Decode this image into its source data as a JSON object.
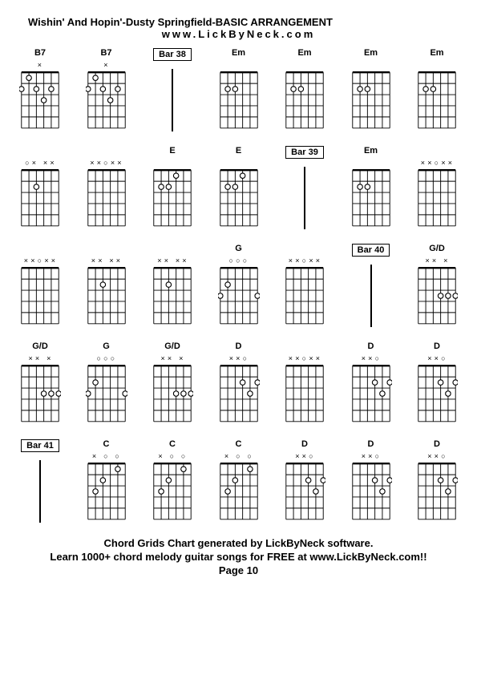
{
  "header": {
    "title": "Wishin' And Hopin'-Dusty Springfield-BASIC ARRANGEMENT",
    "url": "www.LickByNeck.com"
  },
  "footer": {
    "line1": "Chord Grids Chart generated by LickByNeck software.",
    "line2": "Learn 1000+ chord melody guitar songs for FREE at www.LickByNeck.com!!",
    "page": "Page 10"
  },
  "chordGrid": {
    "stroke": "#000000",
    "fretboardWidth": 50,
    "fretboardHeight": 75,
    "strings": 6,
    "frets": 5
  },
  "rows": [
    [
      {
        "type": "chord",
        "label": "B7",
        "markers": "×     ",
        "dots": [
          [
            1,
            0
          ],
          [
            0,
            1
          ],
          [
            2,
            1
          ],
          [
            4,
            1
          ],
          [
            3,
            2
          ]
        ],
        "opens": [
          1,
          5
        ]
      },
      {
        "type": "chord",
        "label": "B7",
        "markers": "×     ",
        "dots": [
          [
            1,
            0
          ],
          [
            0,
            1
          ],
          [
            2,
            1
          ],
          [
            4,
            1
          ],
          [
            3,
            2
          ]
        ],
        "opens": [
          1,
          5
        ]
      },
      {
        "type": "bar",
        "label": "Bar 38"
      },
      {
        "type": "chord",
        "label": "Em",
        "markers": "      ",
        "dots": [
          [
            1,
            1
          ],
          [
            2,
            1
          ]
        ],
        "opens": [
          0,
          3,
          4,
          5
        ]
      },
      {
        "type": "chord",
        "label": "Em",
        "markers": "      ",
        "dots": [
          [
            1,
            1
          ],
          [
            2,
            1
          ]
        ],
        "opens": [
          0,
          3,
          4,
          5
        ]
      },
      {
        "type": "chord",
        "label": "Em",
        "markers": "      ",
        "dots": [
          [
            1,
            1
          ],
          [
            2,
            1
          ]
        ],
        "opens": [
          0,
          3,
          4,
          5
        ]
      },
      {
        "type": "chord",
        "label": "Em",
        "markers": "      ",
        "dots": [
          [
            1,
            1
          ],
          [
            2,
            1
          ]
        ],
        "opens": [
          0,
          3,
          4,
          5
        ]
      }
    ],
    [
      {
        "type": "chord",
        "label": "",
        "markers": "○× ×× ",
        "dots": [
          [
            2,
            1
          ]
        ],
        "opens": [
          0,
          5
        ]
      },
      {
        "type": "chord",
        "label": "",
        "markers": "××○×× ",
        "dots": [],
        "opens": [
          2,
          5
        ]
      },
      {
        "type": "chord",
        "label": "E",
        "markers": "      ",
        "dots": [
          [
            3,
            0
          ],
          [
            1,
            1
          ],
          [
            2,
            1
          ]
        ],
        "opens": [
          0,
          4,
          5
        ]
      },
      {
        "type": "chord",
        "label": "E",
        "markers": "      ",
        "dots": [
          [
            3,
            0
          ],
          [
            1,
            1
          ],
          [
            2,
            1
          ]
        ],
        "opens": [
          0,
          4,
          5
        ]
      },
      {
        "type": "bar",
        "label": "Bar 39"
      },
      {
        "type": "chord",
        "label": "Em",
        "markers": "      ",
        "dots": [
          [
            1,
            1
          ],
          [
            2,
            1
          ]
        ],
        "opens": [
          0,
          3,
          4,
          5
        ]
      },
      {
        "type": "chord",
        "label": "",
        "markers": "××○×× ",
        "dots": [],
        "opens": [
          2,
          5
        ]
      }
    ],
    [
      {
        "type": "chord",
        "label": "",
        "markers": "××○×× ",
        "dots": [],
        "opens": [
          2,
          5
        ]
      },
      {
        "type": "chord",
        "label": "",
        "markers": "×× ×× ",
        "dots": [
          [
            2,
            1
          ]
        ],
        "opens": [
          5
        ]
      },
      {
        "type": "chord",
        "label": "",
        "markers": "×× ×× ",
        "dots": [
          [
            2,
            1
          ]
        ],
        "opens": [
          5
        ]
      },
      {
        "type": "chord",
        "label": "G",
        "markers": " ○○○  ",
        "dots": [
          [
            1,
            1
          ],
          [
            0,
            2
          ],
          [
            5,
            2
          ]
        ],
        "opens": [
          1,
          2,
          3,
          4
        ]
      },
      {
        "type": "chord",
        "label": "",
        "markers": "××○×× ",
        "dots": [],
        "opens": [
          2,
          5
        ]
      },
      {
        "type": "bar",
        "label": "Bar 40"
      },
      {
        "type": "chord",
        "label": "G/D",
        "markers": "×× × ",
        "dots": [
          [
            3,
            2
          ],
          [
            4,
            2
          ],
          [
            5,
            2
          ]
        ],
        "opens": [
          2
        ]
      }
    ],
    [
      {
        "type": "chord",
        "label": "G/D",
        "markers": "×× × ",
        "dots": [
          [
            3,
            2
          ],
          [
            4,
            2
          ],
          [
            5,
            2
          ]
        ],
        "opens": [
          2
        ]
      },
      {
        "type": "chord",
        "label": "G",
        "markers": " ○○○  ",
        "dots": [
          [
            1,
            1
          ],
          [
            0,
            2
          ],
          [
            5,
            2
          ]
        ],
        "opens": [
          1,
          2,
          3,
          4
        ]
      },
      {
        "type": "chord",
        "label": "G/D",
        "markers": "×× × ",
        "dots": [
          [
            3,
            2
          ],
          [
            4,
            2
          ],
          [
            5,
            2
          ]
        ],
        "opens": [
          2
        ]
      },
      {
        "type": "chord",
        "label": "D",
        "markers": "××○   ",
        "dots": [
          [
            3,
            1
          ],
          [
            5,
            1
          ],
          [
            4,
            2
          ]
        ],
        "opens": [
          2
        ]
      },
      {
        "type": "chord",
        "label": "",
        "markers": "××○×× ",
        "dots": [],
        "opens": [
          2,
          5
        ]
      },
      {
        "type": "chord",
        "label": "D",
        "markers": "××○   ",
        "dots": [
          [
            3,
            1
          ],
          [
            5,
            1
          ],
          [
            4,
            2
          ]
        ],
        "opens": [
          2
        ]
      },
      {
        "type": "chord",
        "label": "D",
        "markers": "××○   ",
        "dots": [
          [
            3,
            1
          ],
          [
            5,
            1
          ],
          [
            4,
            2
          ]
        ],
        "opens": [
          2
        ]
      }
    ],
    [
      {
        "type": "bar",
        "label": "Bar 41"
      },
      {
        "type": "chord",
        "label": "C",
        "markers": "× ○ ○ ",
        "dots": [
          [
            4,
            0
          ],
          [
            2,
            1
          ],
          [
            1,
            2
          ]
        ],
        "opens": [
          3,
          5
        ]
      },
      {
        "type": "chord",
        "label": "C",
        "markers": "× ○ ○ ",
        "dots": [
          [
            4,
            0
          ],
          [
            2,
            1
          ],
          [
            1,
            2
          ]
        ],
        "opens": [
          3,
          5
        ]
      },
      {
        "type": "chord",
        "label": "C",
        "markers": "× ○ ○ ",
        "dots": [
          [
            4,
            0
          ],
          [
            2,
            1
          ],
          [
            1,
            2
          ]
        ],
        "opens": [
          3,
          5
        ]
      },
      {
        "type": "chord",
        "label": "D",
        "markers": "××○   ",
        "dots": [
          [
            3,
            1
          ],
          [
            5,
            1
          ],
          [
            4,
            2
          ]
        ],
        "opens": [
          2
        ]
      },
      {
        "type": "chord",
        "label": "D",
        "markers": "××○   ",
        "dots": [
          [
            3,
            1
          ],
          [
            5,
            1
          ],
          [
            4,
            2
          ]
        ],
        "opens": [
          2
        ]
      },
      {
        "type": "chord",
        "label": "D",
        "markers": "××○   ",
        "dots": [
          [
            3,
            1
          ],
          [
            5,
            1
          ],
          [
            4,
            2
          ]
        ],
        "opens": [
          2
        ]
      }
    ]
  ]
}
